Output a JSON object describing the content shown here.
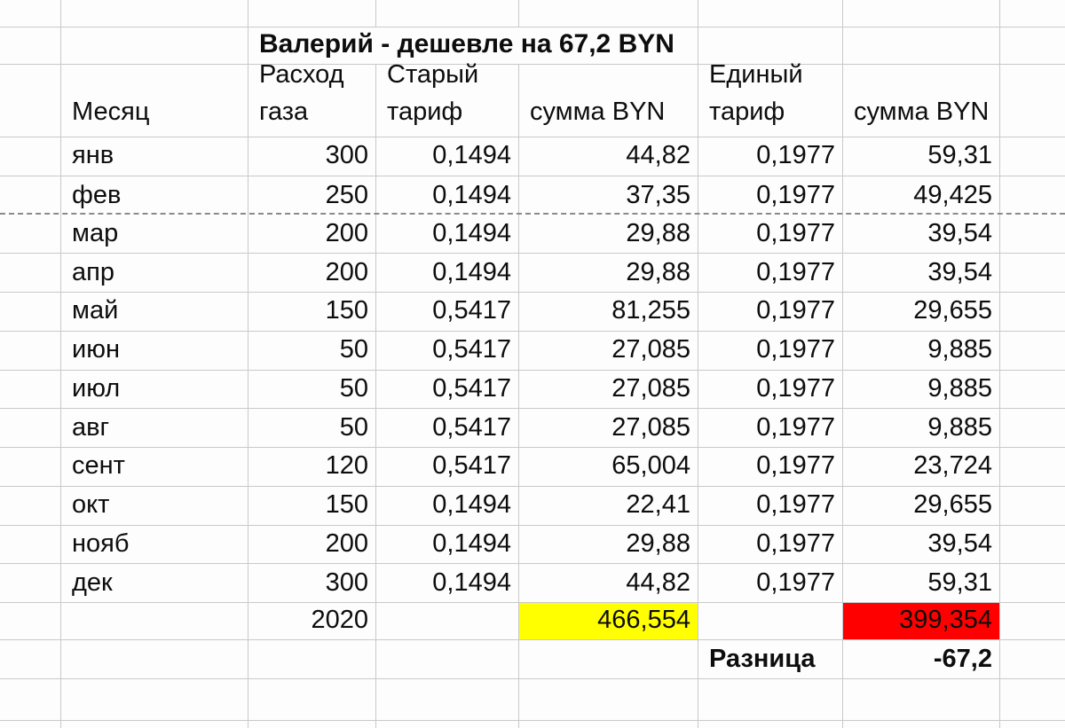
{
  "sheet": {
    "title": "Валерий - дешевле на 67,2 BYN",
    "columns": {
      "month": "Месяц",
      "gas": [
        "Расход",
        "газа"
      ],
      "old_tariff": [
        "Старый",
        "тариф"
      ],
      "old_sum": "сумма BYN",
      "single_tariff": [
        "Единый",
        "тариф"
      ],
      "single_sum": "сумма BYN"
    },
    "rows": [
      {
        "month": "янв",
        "gas": "300",
        "old_tariff": "0,1494",
        "old_sum": "44,82",
        "single_tariff": "0,1977",
        "single_sum": "59,31"
      },
      {
        "month": "фев",
        "gas": "250",
        "old_tariff": "0,1494",
        "old_sum": "37,35",
        "single_tariff": "0,1977",
        "single_sum": "49,425"
      },
      {
        "month": "мар",
        "gas": "200",
        "old_tariff": "0,1494",
        "old_sum": "29,88",
        "single_tariff": "0,1977",
        "single_sum": "39,54"
      },
      {
        "month": "апр",
        "gas": "200",
        "old_tariff": "0,1494",
        "old_sum": "29,88",
        "single_tariff": "0,1977",
        "single_sum": "39,54"
      },
      {
        "month": "май",
        "gas": "150",
        "old_tariff": "0,5417",
        "old_sum": "81,255",
        "single_tariff": "0,1977",
        "single_sum": "29,655"
      },
      {
        "month": "июн",
        "gas": "50",
        "old_tariff": "0,5417",
        "old_sum": "27,085",
        "single_tariff": "0,1977",
        "single_sum": "9,885"
      },
      {
        "month": "июл",
        "gas": "50",
        "old_tariff": "0,5417",
        "old_sum": "27,085",
        "single_tariff": "0,1977",
        "single_sum": "9,885"
      },
      {
        "month": "авг",
        "gas": "50",
        "old_tariff": "0,5417",
        "old_sum": "27,085",
        "single_tariff": "0,1977",
        "single_sum": "9,885"
      },
      {
        "month": "сент",
        "gas": "120",
        "old_tariff": "0,5417",
        "old_sum": "65,004",
        "single_tariff": "0,1977",
        "single_sum": "23,724"
      },
      {
        "month": "окт",
        "gas": "150",
        "old_tariff": "0,1494",
        "old_sum": "22,41",
        "single_tariff": "0,1977",
        "single_sum": "29,655"
      },
      {
        "month": "нояб",
        "gas": "200",
        "old_tariff": "0,1494",
        "old_sum": "29,88",
        "single_tariff": "0,1977",
        "single_sum": "39,54"
      },
      {
        "month": "дек",
        "gas": "300",
        "old_tariff": "0,1494",
        "old_sum": "44,82",
        "single_tariff": "0,1977",
        "single_sum": "59,31"
      }
    ],
    "totals": {
      "gas_total": "2020",
      "old_sum_total": "466,554",
      "single_sum_total": "399,354"
    },
    "difference": {
      "label": "Разница",
      "value": "-67,2"
    },
    "colors": {
      "old_total_bg": "#ffff00",
      "single_total_bg": "#ff0000",
      "grid_line": "#c9c9c9",
      "page_break_line": "#8a8a8a"
    }
  }
}
